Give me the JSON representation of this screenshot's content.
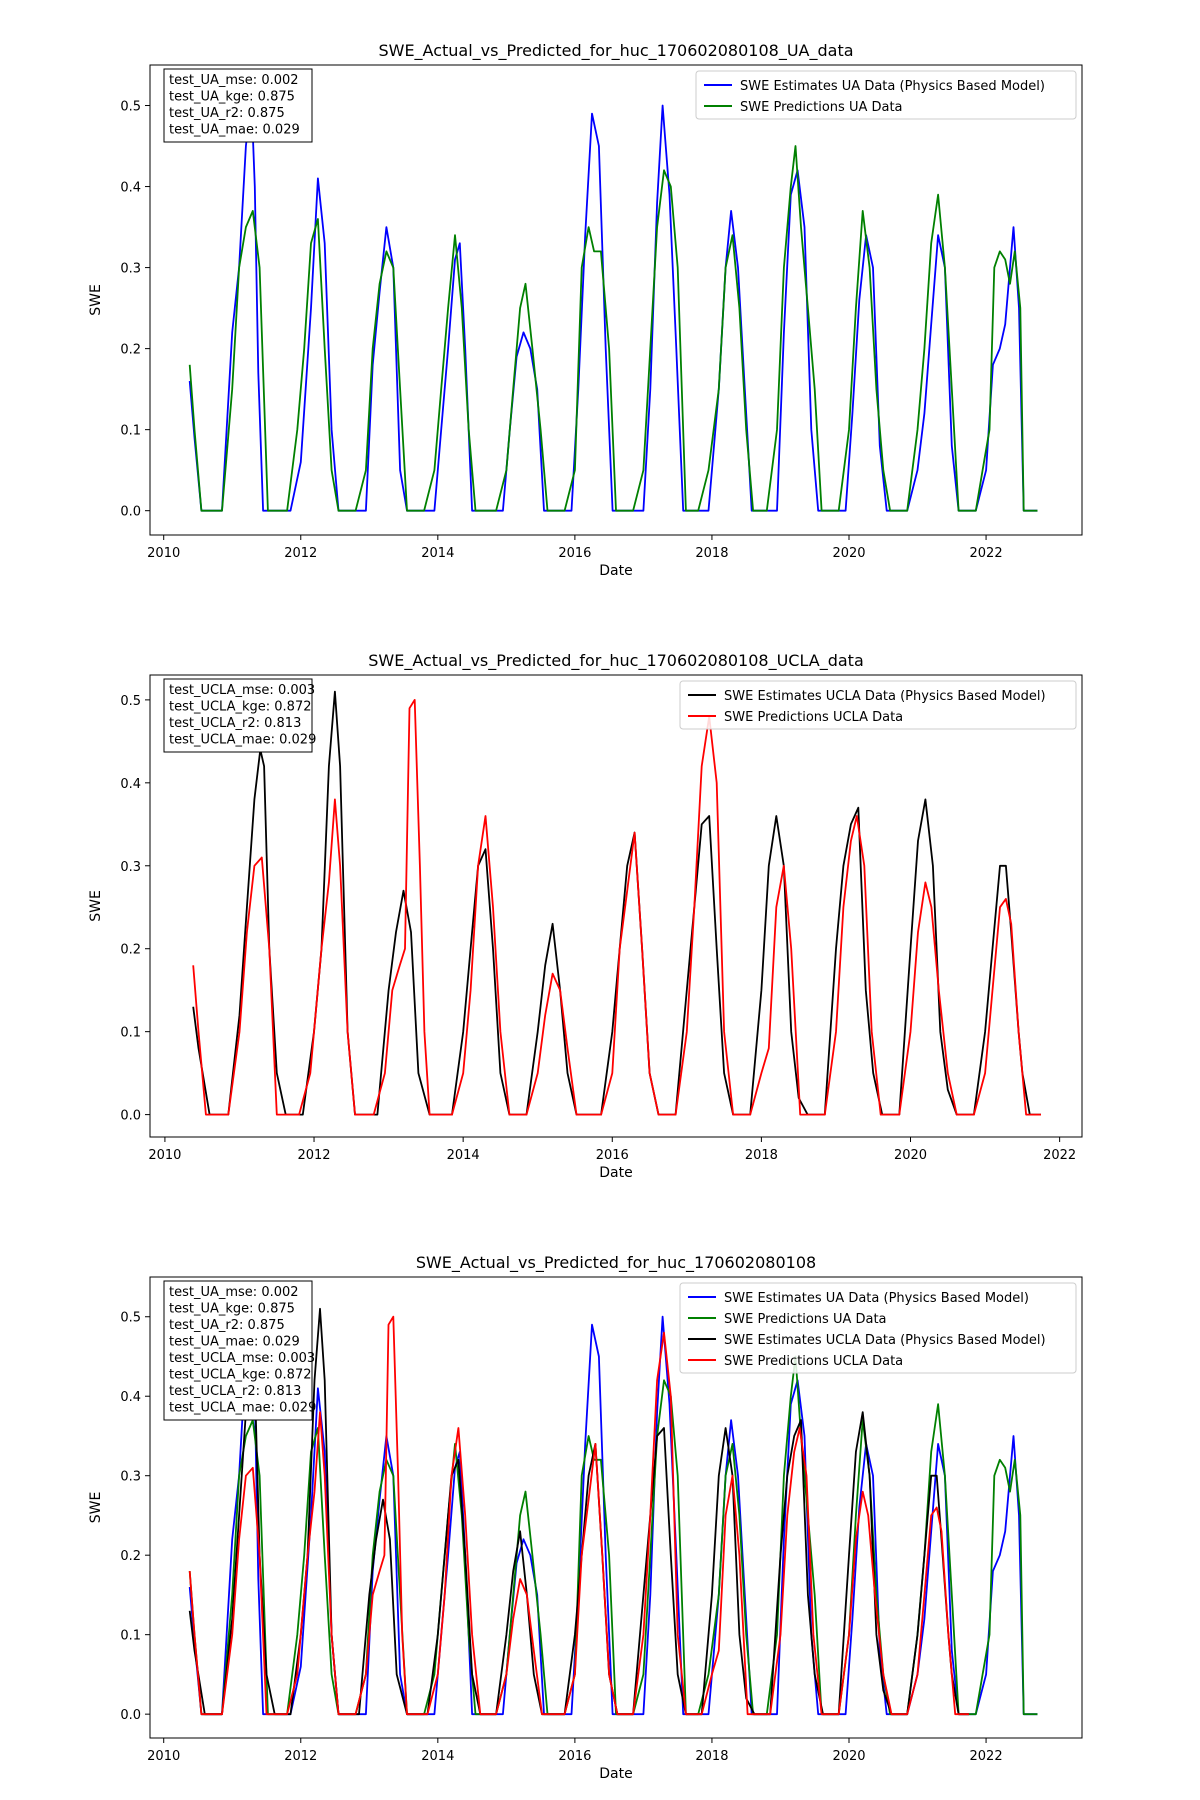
{
  "chart_data": [
    {
      "type": "line",
      "title": "SWE_Actual_vs_Predicted_for_huc_170602080108_UA_data",
      "xlabel": "Date",
      "ylabel": "SWE",
      "xlim": [
        2009.8,
        2023.4
      ],
      "ylim": [
        -0.03,
        0.55
      ],
      "xticks": [
        2010,
        2012,
        2014,
        2016,
        2018,
        2020,
        2022
      ],
      "yticks": [
        0.0,
        0.1,
        0.2,
        0.3,
        0.4,
        0.5
      ],
      "grid": false,
      "legend_position": "top-right",
      "metrics": [
        {
          "name": "test_UA_mse",
          "value": 0.002,
          "text": "test_UA_mse: 0.002"
        },
        {
          "name": "test_UA_kge",
          "value": 0.875,
          "text": "test_UA_kge: 0.875"
        },
        {
          "name": "test_UA_r2",
          "value": 0.875,
          "text": "test_UA_r2: 0.875"
        },
        {
          "name": "test_UA_mae",
          "value": 0.029,
          "text": "test_UA_mae: 0.029"
        }
      ],
      "series": [
        {
          "name": "SWE Estimates UA Data (Physics Based Model)",
          "color": "#0000ff",
          "x": [
            2010.38,
            2010.45,
            2010.55,
            2010.85,
            2011.0,
            2011.1,
            2011.2,
            2011.28,
            2011.33,
            2011.38,
            2011.45,
            2011.55,
            2011.75,
            2011.85,
            2012.0,
            2012.15,
            2012.25,
            2012.35,
            2012.45,
            2012.55,
            2012.8,
            2012.95,
            2013.05,
            2013.15,
            2013.25,
            2013.35,
            2013.45,
            2013.55,
            2013.8,
            2013.95,
            2014.05,
            2014.15,
            2014.25,
            2014.32,
            2014.4,
            2014.5,
            2014.8,
            2014.95,
            2015.05,
            2015.15,
            2015.25,
            2015.35,
            2015.45,
            2015.55,
            2015.8,
            2015.95,
            2016.05,
            2016.15,
            2016.25,
            2016.35,
            2016.45,
            2016.55,
            2016.85,
            2017.0,
            2017.1,
            2017.2,
            2017.28,
            2017.38,
            2017.48,
            2017.58,
            2017.8,
            2017.95,
            2018.1,
            2018.2,
            2018.28,
            2018.38,
            2018.48,
            2018.58,
            2018.8,
            2018.95,
            2019.05,
            2019.15,
            2019.25,
            2019.35,
            2019.45,
            2019.55,
            2019.8,
            2019.95,
            2020.05,
            2020.15,
            2020.25,
            2020.35,
            2020.45,
            2020.55,
            2020.85,
            2021.0,
            2021.1,
            2021.2,
            2021.3,
            2021.4,
            2021.5,
            2021.6,
            2021.85,
            2022.0,
            2022.1,
            2022.2,
            2022.28,
            2022.35,
            2022.4,
            2022.48,
            2022.55,
            2022.75
          ],
          "y": [
            0.16,
            0.09,
            0.0,
            0.0,
            0.22,
            0.3,
            0.45,
            0.51,
            0.4,
            0.17,
            0.0,
            0.0,
            0.0,
            0.0,
            0.06,
            0.25,
            0.41,
            0.33,
            0.1,
            0.0,
            0.0,
            0.0,
            0.18,
            0.27,
            0.35,
            0.3,
            0.05,
            0.0,
            0.0,
            0.0,
            0.1,
            0.2,
            0.31,
            0.33,
            0.2,
            0.0,
            0.0,
            0.0,
            0.1,
            0.19,
            0.22,
            0.2,
            0.15,
            0.0,
            0.0,
            0.0,
            0.15,
            0.34,
            0.49,
            0.45,
            0.2,
            0.0,
            0.0,
            0.0,
            0.15,
            0.38,
            0.5,
            0.39,
            0.2,
            0.0,
            0.0,
            0.0,
            0.15,
            0.3,
            0.37,
            0.3,
            0.15,
            0.0,
            0.0,
            0.0,
            0.22,
            0.39,
            0.42,
            0.35,
            0.1,
            0.0,
            0.0,
            0.0,
            0.12,
            0.26,
            0.34,
            0.3,
            0.08,
            0.0,
            0.0,
            0.05,
            0.12,
            0.23,
            0.34,
            0.3,
            0.08,
            0.0,
            0.0,
            0.05,
            0.18,
            0.2,
            0.23,
            0.3,
            0.35,
            0.25,
            0.0,
            0.0
          ]
        },
        {
          "name": "SWE Predictions UA Data",
          "color": "#008000",
          "x": [
            2010.38,
            2010.45,
            2010.55,
            2010.85,
            2011.0,
            2011.1,
            2011.2,
            2011.3,
            2011.4,
            2011.52,
            2011.8,
            2011.95,
            2012.05,
            2012.15,
            2012.25,
            2012.35,
            2012.45,
            2012.55,
            2012.8,
            2012.95,
            2013.05,
            2013.15,
            2013.25,
            2013.35,
            2013.45,
            2013.55,
            2013.8,
            2013.95,
            2014.05,
            2014.15,
            2014.25,
            2014.35,
            2014.45,
            2014.55,
            2014.85,
            2015.0,
            2015.1,
            2015.2,
            2015.28,
            2015.38,
            2015.5,
            2015.6,
            2015.85,
            2016.0,
            2016.1,
            2016.2,
            2016.28,
            2016.38,
            2016.5,
            2016.6,
            2016.85,
            2017.0,
            2017.1,
            2017.2,
            2017.3,
            2017.4,
            2017.5,
            2017.62,
            2017.8,
            2017.95,
            2018.1,
            2018.2,
            2018.3,
            2018.4,
            2018.5,
            2018.6,
            2018.8,
            2018.95,
            2019.05,
            2019.15,
            2019.22,
            2019.3,
            2019.4,
            2019.5,
            2019.6,
            2019.85,
            2020.0,
            2020.1,
            2020.2,
            2020.3,
            2020.4,
            2020.5,
            2020.6,
            2020.85,
            2021.0,
            2021.1,
            2021.2,
            2021.3,
            2021.4,
            2021.5,
            2021.6,
            2021.85,
            2021.95,
            2022.05,
            2022.12,
            2022.2,
            2022.28,
            2022.35,
            2022.42,
            2022.5,
            2022.55,
            2022.75
          ],
          "y": [
            0.18,
            0.1,
            0.0,
            0.0,
            0.15,
            0.3,
            0.35,
            0.37,
            0.3,
            0.0,
            0.0,
            0.1,
            0.2,
            0.33,
            0.36,
            0.2,
            0.05,
            0.0,
            0.0,
            0.05,
            0.2,
            0.28,
            0.32,
            0.3,
            0.15,
            0.0,
            0.0,
            0.05,
            0.15,
            0.25,
            0.34,
            0.25,
            0.1,
            0.0,
            0.0,
            0.05,
            0.15,
            0.25,
            0.28,
            0.2,
            0.1,
            0.0,
            0.0,
            0.05,
            0.3,
            0.35,
            0.32,
            0.32,
            0.2,
            0.0,
            0.0,
            0.05,
            0.2,
            0.35,
            0.42,
            0.4,
            0.3,
            0.0,
            0.0,
            0.05,
            0.15,
            0.3,
            0.34,
            0.25,
            0.1,
            0.0,
            0.0,
            0.1,
            0.3,
            0.4,
            0.45,
            0.35,
            0.25,
            0.15,
            0.0,
            0.0,
            0.1,
            0.25,
            0.37,
            0.3,
            0.15,
            0.05,
            0.0,
            0.0,
            0.1,
            0.2,
            0.33,
            0.39,
            0.3,
            0.15,
            0.0,
            0.0,
            0.05,
            0.1,
            0.3,
            0.32,
            0.31,
            0.28,
            0.32,
            0.25,
            0.0,
            0.0
          ]
        }
      ]
    },
    {
      "type": "line",
      "title": "SWE_Actual_vs_Predicted_for_huc_170602080108_UCLA_data",
      "xlabel": "Date",
      "ylabel": "SWE",
      "xlim": [
        2009.8,
        2022.3
      ],
      "ylim": [
        -0.027,
        0.53
      ],
      "xticks": [
        2010,
        2012,
        2014,
        2016,
        2018,
        2020,
        2022
      ],
      "yticks": [
        0.0,
        0.1,
        0.2,
        0.3,
        0.4,
        0.5
      ],
      "grid": false,
      "legend_position": "top-right",
      "metrics": [
        {
          "name": "test_UCLA_mse",
          "value": 0.003,
          "text": "test_UCLA_mse: 0.003"
        },
        {
          "name": "test_UCLA_kge",
          "value": 0.872,
          "text": "test_UCLA_kge: 0.872"
        },
        {
          "name": "test_UCLA_r2",
          "value": 0.813,
          "text": "test_UCLA_r2: 0.813"
        },
        {
          "name": "test_UCLA_mae",
          "value": 0.029,
          "text": "test_UCLA_mae: 0.029"
        }
      ],
      "series": [
        {
          "name": "SWE Estimates UCLA Data (Physics Based Model)",
          "color": "#000000",
          "x": [
            2010.38,
            2010.45,
            2010.6,
            2010.85,
            2011.0,
            2011.1,
            2011.2,
            2011.28,
            2011.33,
            2011.4,
            2011.5,
            2011.62,
            2011.85,
            2012.0,
            2012.1,
            2012.2,
            2012.28,
            2012.35,
            2012.45,
            2012.55,
            2012.7,
            2012.85,
            2013.0,
            2013.1,
            2013.2,
            2013.3,
            2013.4,
            2013.55,
            2013.85,
            2014.0,
            2014.1,
            2014.2,
            2014.3,
            2014.4,
            2014.5,
            2014.62,
            2014.85,
            2015.0,
            2015.1,
            2015.2,
            2015.3,
            2015.4,
            2015.52,
            2015.85,
            2016.0,
            2016.1,
            2016.2,
            2016.3,
            2016.4,
            2016.5,
            2016.62,
            2016.85,
            2017.0,
            2017.1,
            2017.2,
            2017.3,
            2017.4,
            2017.5,
            2017.62,
            2017.85,
            2018.0,
            2018.1,
            2018.2,
            2018.3,
            2018.4,
            2018.5,
            2018.62,
            2018.85,
            2019.0,
            2019.1,
            2019.2,
            2019.3,
            2019.4,
            2019.5,
            2019.62,
            2019.85,
            2020.0,
            2020.1,
            2020.2,
            2020.3,
            2020.4,
            2020.5,
            2020.62,
            2020.85,
            2021.0,
            2021.1,
            2021.2,
            2021.28,
            2021.35,
            2021.45,
            2021.5,
            2021.6,
            2021.75
          ],
          "y": [
            0.13,
            0.08,
            0.0,
            0.0,
            0.12,
            0.25,
            0.38,
            0.44,
            0.42,
            0.2,
            0.05,
            0.0,
            0.0,
            0.1,
            0.2,
            0.42,
            0.51,
            0.42,
            0.1,
            0.0,
            0.0,
            0.0,
            0.15,
            0.22,
            0.27,
            0.22,
            0.05,
            0.0,
            0.0,
            0.1,
            0.2,
            0.3,
            0.32,
            0.2,
            0.05,
            0.0,
            0.0,
            0.1,
            0.18,
            0.23,
            0.15,
            0.05,
            0.0,
            0.0,
            0.1,
            0.2,
            0.3,
            0.34,
            0.2,
            0.05,
            0.0,
            0.0,
            0.15,
            0.25,
            0.35,
            0.36,
            0.2,
            0.05,
            0.0,
            0.0,
            0.15,
            0.3,
            0.36,
            0.3,
            0.1,
            0.02,
            0.0,
            0.0,
            0.2,
            0.3,
            0.35,
            0.37,
            0.15,
            0.05,
            0.0,
            0.0,
            0.2,
            0.33,
            0.38,
            0.3,
            0.1,
            0.03,
            0.0,
            0.0,
            0.1,
            0.2,
            0.3,
            0.3,
            0.22,
            0.1,
            0.05,
            0.0,
            0.0
          ]
        },
        {
          "name": "SWE Predictions UCLA Data",
          "color": "#ff0000",
          "x": [
            2010.38,
            2010.45,
            2010.55,
            2010.85,
            2011.0,
            2011.1,
            2011.2,
            2011.3,
            2011.4,
            2011.5,
            2011.8,
            2011.95,
            2012.1,
            2012.2,
            2012.28,
            2012.35,
            2012.45,
            2012.55,
            2012.8,
            2012.95,
            2013.05,
            2013.15,
            2013.22,
            2013.28,
            2013.35,
            2013.42,
            2013.48,
            2013.55,
            2013.85,
            2014.0,
            2014.1,
            2014.2,
            2014.3,
            2014.4,
            2014.5,
            2014.62,
            2014.85,
            2015.0,
            2015.1,
            2015.2,
            2015.3,
            2015.4,
            2015.52,
            2015.85,
            2016.0,
            2016.1,
            2016.2,
            2016.3,
            2016.4,
            2016.5,
            2016.62,
            2016.85,
            2017.0,
            2017.1,
            2017.2,
            2017.3,
            2017.4,
            2017.5,
            2017.62,
            2017.85,
            2018.0,
            2018.1,
            2018.2,
            2018.3,
            2018.4,
            2018.52,
            2018.85,
            2019.0,
            2019.1,
            2019.2,
            2019.28,
            2019.38,
            2019.48,
            2019.6,
            2019.85,
            2020.0,
            2020.1,
            2020.2,
            2020.28,
            2020.38,
            2020.5,
            2020.62,
            2020.85,
            2021.0,
            2021.1,
            2021.2,
            2021.28,
            2021.35,
            2021.45,
            2021.55,
            2021.75
          ],
          "y": [
            0.18,
            0.1,
            0.0,
            0.0,
            0.1,
            0.22,
            0.3,
            0.31,
            0.2,
            0.0,
            0.0,
            0.05,
            0.2,
            0.28,
            0.38,
            0.3,
            0.1,
            0.0,
            0.0,
            0.05,
            0.15,
            0.18,
            0.2,
            0.49,
            0.5,
            0.3,
            0.1,
            0.0,
            0.0,
            0.05,
            0.15,
            0.3,
            0.36,
            0.25,
            0.1,
            0.0,
            0.0,
            0.05,
            0.12,
            0.17,
            0.15,
            0.08,
            0.0,
            0.0,
            0.05,
            0.2,
            0.27,
            0.34,
            0.2,
            0.05,
            0.0,
            0.0,
            0.1,
            0.25,
            0.42,
            0.48,
            0.4,
            0.1,
            0.0,
            0.0,
            0.05,
            0.08,
            0.25,
            0.3,
            0.2,
            0.0,
            0.0,
            0.1,
            0.25,
            0.33,
            0.36,
            0.3,
            0.1,
            0.0,
            0.0,
            0.1,
            0.22,
            0.28,
            0.25,
            0.15,
            0.05,
            0.0,
            0.0,
            0.05,
            0.15,
            0.25,
            0.26,
            0.23,
            0.1,
            0.0,
            0.0
          ]
        }
      ]
    },
    {
      "type": "line",
      "title": "SWE_Actual_vs_Predicted_for_huc_170602080108",
      "xlabel": "Date",
      "ylabel": "SWE",
      "xlim": [
        2009.8,
        2023.4
      ],
      "ylim": [
        -0.03,
        0.55
      ],
      "xticks": [
        2010,
        2012,
        2014,
        2016,
        2018,
        2020,
        2022
      ],
      "yticks": [
        0.0,
        0.1,
        0.2,
        0.3,
        0.4,
        0.5
      ],
      "grid": false,
      "legend_position": "top-right",
      "metrics": [
        {
          "name": "test_UA_mse",
          "value": 0.002,
          "text": "test_UA_mse: 0.002"
        },
        {
          "name": "test_UA_kge",
          "value": 0.875,
          "text": "test_UA_kge: 0.875"
        },
        {
          "name": "test_UA_r2",
          "value": 0.875,
          "text": "test_UA_r2: 0.875"
        },
        {
          "name": "test_UA_mae",
          "value": 0.029,
          "text": "test_UA_mae: 0.029"
        },
        {
          "name": "test_UCLA_mse",
          "value": 0.003,
          "text": "test_UCLA_mse: 0.003"
        },
        {
          "name": "test_UCLA_kge",
          "value": 0.872,
          "text": "test_UCLA_kge: 0.872"
        },
        {
          "name": "test_UCLA_r2",
          "value": 0.813,
          "text": "test_UCLA_r2: 0.813"
        },
        {
          "name": "test_UCLA_mae",
          "value": 0.029,
          "text": "test_UCLA_mae: 0.029"
        }
      ],
      "series": [
        {
          "name": "SWE Estimates UA Data (Physics Based Model)",
          "color": "#0000ff",
          "same_as": [
            0,
            0
          ]
        },
        {
          "name": "SWE Predictions UA Data",
          "color": "#008000",
          "same_as": [
            0,
            1
          ]
        },
        {
          "name": "SWE Estimates UCLA Data (Physics Based Model)",
          "color": "#000000",
          "same_as": [
            1,
            0
          ]
        },
        {
          "name": "SWE Predictions UCLA Data",
          "color": "#ff0000",
          "same_as": [
            1,
            1
          ]
        }
      ]
    }
  ]
}
